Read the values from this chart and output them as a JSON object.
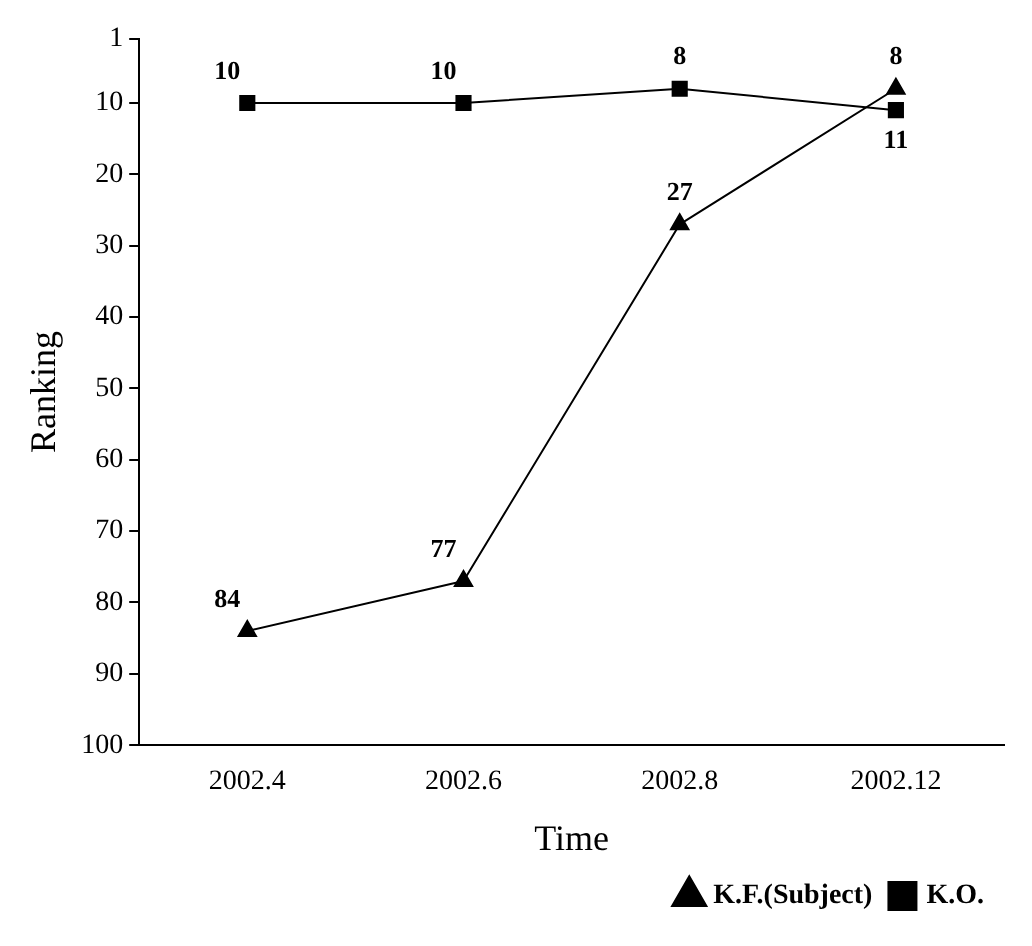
{
  "chart_data": {
    "type": "line",
    "xlabel": "Time",
    "ylabel": "Ranking",
    "categories": [
      "2002.4",
      "2002.6",
      "2002.8",
      "2002.12"
    ],
    "series": [
      {
        "name": "K.F.(Subject)",
        "color": "#000000",
        "marker": "triangle",
        "values": [
          84,
          77,
          27,
          8
        ]
      },
      {
        "name": "K.O.",
        "color": "#000000",
        "marker": "square",
        "values": [
          10,
          10,
          8,
          11
        ]
      }
    ],
    "ylim": [
      100,
      1
    ],
    "yticks": [
      1,
      10,
      20,
      30,
      40,
      50,
      60,
      70,
      80,
      90,
      100
    ],
    "grid": false,
    "legend": "bottom right",
    "data_labels": true,
    "line_style": "solid"
  }
}
